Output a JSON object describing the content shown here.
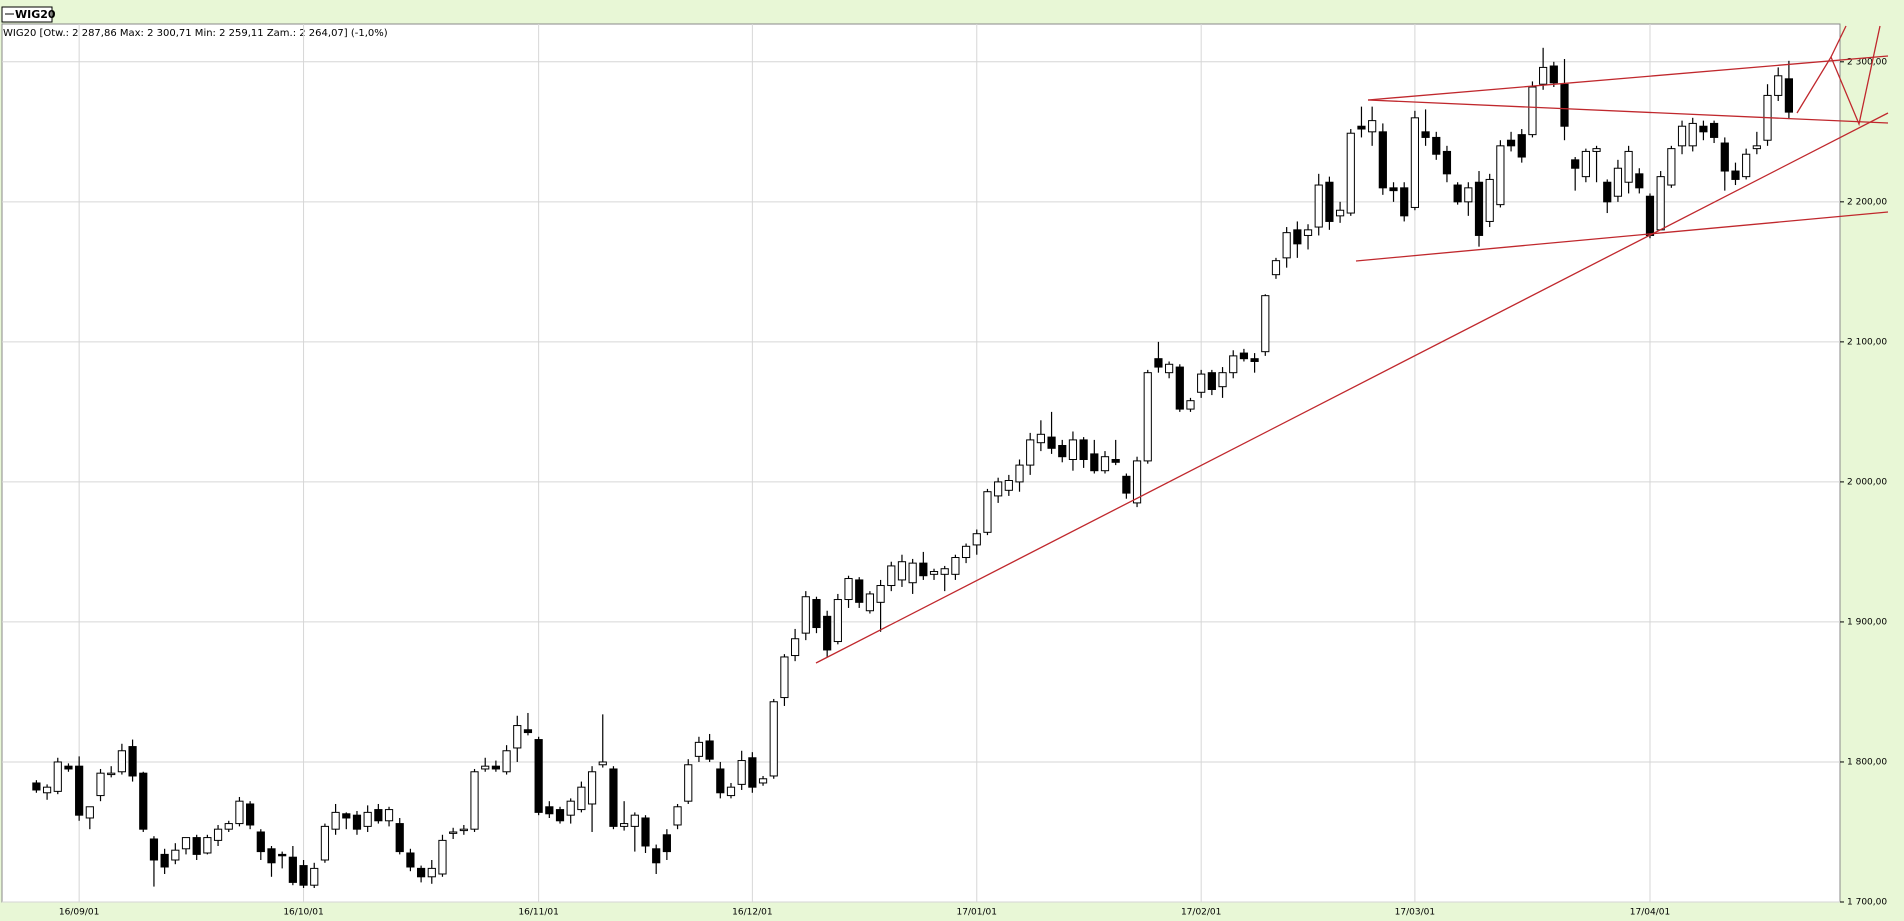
{
  "chart_data": {
    "type": "candlestick",
    "title": "WIG20",
    "subtitle": "WIG20 [Otw.: 2 287,86  Max: 2 300,71  Min: 2 259,11  Zam.: 2 264,07] (-1,0%)",
    "up_color": "#ffffff",
    "down_color": "#000000",
    "grid": true,
    "categories": [
      null,
      null,
      null,
      null,
      "16/09/01",
      null,
      null,
      null,
      null,
      null,
      null,
      null,
      null,
      null,
      null,
      null,
      null,
      null,
      null,
      null,
      null,
      null,
      null,
      null,
      null,
      "16/10/01",
      null,
      null,
      null,
      null,
      null,
      null,
      null,
      null,
      null,
      null,
      null,
      null,
      null,
      null,
      null,
      null,
      null,
      null,
      null,
      null,
      null,
      "16/11/01",
      null,
      null,
      null,
      null,
      null,
      null,
      null,
      null,
      null,
      null,
      null,
      null,
      null,
      null,
      null,
      null,
      null,
      null,
      null,
      "16/12/01",
      null,
      null,
      null,
      null,
      null,
      null,
      null,
      null,
      null,
      null,
      null,
      null,
      null,
      null,
      null,
      null,
      null,
      null,
      null,
      null,
      "17/01/01",
      null,
      null,
      null,
      null,
      null,
      null,
      null,
      null,
      null,
      null,
      null,
      null,
      null,
      null,
      null,
      null,
      null,
      null,
      null,
      null,
      "17/02/01",
      null,
      null,
      null,
      null,
      null,
      null,
      null,
      null,
      null,
      null,
      null,
      null,
      null,
      null,
      null,
      null,
      null,
      null,
      null,
      "17/03/01",
      null,
      null,
      null,
      null,
      null,
      null,
      null,
      null,
      null,
      null,
      null,
      null,
      null,
      null,
      null,
      null,
      null,
      null,
      null,
      null,
      null,
      "17/04/01",
      null,
      null,
      null,
      null,
      null,
      null,
      null,
      null,
      null,
      null,
      null,
      null,
      null
    ],
    "open": [
      1785,
      1778,
      1779,
      1797,
      1797,
      1760,
      1776,
      1791,
      1793,
      1811,
      1792,
      1745,
      1734,
      1730,
      1738,
      1746,
      1735,
      1744,
      1752,
      1756,
      1770,
      1750,
      1738,
      1734,
      1732,
      1726,
      1712,
      1730,
      1752,
      1763,
      1762,
      1754,
      1766,
      1758,
      1756,
      1735,
      1724,
      1718,
      1720,
      1749,
      1751,
      1752,
      1795,
      1797,
      1793,
      1810,
      1823,
      1816,
      1768,
      1766,
      1762,
      1766,
      1770,
      1798,
      1795,
      1754,
      1754,
      1760,
      1738,
      1748,
      1755,
      1772,
      1804,
      1815,
      1795,
      1776,
      1784,
      1803,
      1785,
      1790,
      1846,
      1876,
      1892,
      1916,
      1904,
      1886,
      1916,
      1930,
      1908,
      1914,
      1926,
      1930,
      1928,
      1942,
      1934,
      1934,
      1934,
      1946,
      1955,
      1964,
      1990,
      1994,
      2000,
      2012,
      2028,
      2032,
      2026,
      2016,
      2030,
      2020,
      2008,
      2016,
      2004,
      1985,
      2015,
      2088,
      2078,
      2082,
      2052,
      2064,
      2078,
      2068,
      2078,
      2092,
      2088,
      2093,
      2148,
      2160,
      2180,
      2176,
      2182,
      2214,
      2190,
      2192,
      2254,
      2250,
      2250,
      2210,
      2210,
      2196,
      2250,
      2246,
      2236,
      2212,
      2200,
      2214,
      2186,
      2198,
      2244,
      2248,
      2248,
      2284,
      2297,
      2284,
      2230,
      2218,
      2236,
      2214,
      2204,
      2214,
      2220,
      2204,
      2180,
      2212,
      2240,
      2240,
      2254,
      2256,
      2242,
      2222,
      2218,
      2238,
      2244,
      2276,
      2287.86
    ],
    "high": [
      1787,
      1784,
      1803,
      1799,
      1804,
      1768,
      1795,
      1797,
      1813,
      1816,
      1793,
      1747,
      1738,
      1742,
      1746,
      1748,
      1748,
      1755,
      1758,
      1775,
      1772,
      1752,
      1740,
      1736,
      1740,
      1730,
      1728,
      1756,
      1770,
      1764,
      1765,
      1769,
      1770,
      1768,
      1760,
      1738,
      1726,
      1730,
      1748,
      1753,
      1755,
      1795,
      1803,
      1801,
      1812,
      1833,
      1835,
      1818,
      1772,
      1768,
      1774,
      1786,
      1797,
      1834,
      1797,
      1772,
      1764,
      1762,
      1741,
      1752,
      1770,
      1802,
      1818,
      1820,
      1800,
      1785,
      1808,
      1807,
      1790,
      1845,
      1877,
      1895,
      1922,
      1918,
      1908,
      1920,
      1933,
      1932,
      1922,
      1930,
      1943,
      1948,
      1945,
      1950,
      1938,
      1940,
      1948,
      1956,
      1966,
      1995,
      2003,
      2005,
      2016,
      2035,
      2044,
      2050,
      2030,
      2036,
      2032,
      2030,
      2022,
      2030,
      2006,
      2018,
      2080,
      2100,
      2086,
      2084,
      2060,
      2080,
      2080,
      2082,
      2094,
      2095,
      2092,
      2134,
      2160,
      2182,
      2186,
      2184,
      2220,
      2218,
      2200,
      2252,
      2268,
      2268,
      2256,
      2214,
      2214,
      2265,
      2266,
      2250,
      2240,
      2214,
      2214,
      2222,
      2220,
      2244,
      2250,
      2252,
      2286,
      2310,
      2300,
      2302,
      2232,
      2238,
      2240,
      2216,
      2230,
      2240,
      2224,
      2206,
      2222,
      2240,
      2258,
      2260,
      2258,
      2258,
      2246,
      2228,
      2238,
      2250,
      2284,
      2296,
      2300.71
    ],
    "low": [
      1778,
      1773,
      1777,
      1793,
      1758,
      1752,
      1772,
      1789,
      1791,
      1786,
      1750,
      1711,
      1720,
      1727,
      1734,
      1730,
      1734,
      1740,
      1750,
      1754,
      1752,
      1730,
      1718,
      1724,
      1712,
      1710,
      1710,
      1728,
      1748,
      1752,
      1748,
      1750,
      1756,
      1754,
      1734,
      1722,
      1714,
      1713,
      1718,
      1745,
      1748,
      1750,
      1793,
      1793,
      1791,
      1800,
      1819,
      1762,
      1760,
      1756,
      1756,
      1764,
      1750,
      1796,
      1752,
      1751,
      1736,
      1735,
      1720,
      1730,
      1752,
      1770,
      1800,
      1800,
      1774,
      1774,
      1780,
      1778,
      1783,
      1788,
      1840,
      1872,
      1887,
      1892,
      1875,
      1884,
      1910,
      1910,
      1906,
      1893,
      1922,
      1925,
      1920,
      1930,
      1930,
      1922,
      1930,
      1942,
      1948,
      1962,
      1985,
      1990,
      1993,
      2005,
      2022,
      2020,
      2014,
      2008,
      2010,
      2006,
      2006,
      2012,
      1988,
      1982,
      2013,
      2078,
      2074,
      2050,
      2050,
      2060,
      2062,
      2060,
      2074,
      2086,
      2078,
      2090,
      2145,
      2153,
      2160,
      2166,
      2176,
      2180,
      2185,
      2190,
      2246,
      2240,
      2205,
      2200,
      2186,
      2194,
      2240,
      2230,
      2214,
      2198,
      2190,
      2168,
      2182,
      2196,
      2236,
      2228,
      2246,
      2280,
      2282,
      2244,
      2208,
      2214,
      2214,
      2192,
      2200,
      2206,
      2206,
      2174,
      2180,
      2210,
      2234,
      2236,
      2244,
      2242,
      2208,
      2212,
      2216,
      2234,
      2240,
      2272,
      2259.11
    ],
    "close": [
      1780,
      1782,
      1800,
      1795,
      1762,
      1768,
      1792,
      1792,
      1808,
      1790,
      1752,
      1730,
      1725,
      1737,
      1746,
      1734,
      1746,
      1752,
      1756,
      1772,
      1755,
      1736,
      1728,
      1733,
      1714,
      1712,
      1724,
      1754,
      1764,
      1760,
      1752,
      1764,
      1758,
      1766,
      1736,
      1725,
      1718,
      1724,
      1744,
      1750,
      1752,
      1793,
      1797,
      1795,
      1808,
      1826,
      1821,
      1764,
      1763,
      1758,
      1772,
      1782,
      1793,
      1800,
      1754,
      1756,
      1762,
      1740,
      1728,
      1736,
      1768,
      1798,
      1814,
      1802,
      1778,
      1782,
      1801,
      1782,
      1788,
      1843,
      1875,
      1888,
      1918,
      1896,
      1880,
      1916,
      1931,
      1914,
      1920,
      1926,
      1940,
      1943,
      1942,
      1933,
      1936,
      1938,
      1946,
      1954,
      1963,
      1993,
      2000,
      2001,
      2012,
      2030,
      2034,
      2024,
      2018,
      2030,
      2016,
      2008,
      2018,
      2014,
      1992,
      2015,
      2078,
      2082,
      2084,
      2052,
      2058,
      2077,
      2066,
      2078,
      2090,
      2088,
      2086,
      2133,
      2158,
      2178,
      2170,
      2180,
      2212,
      2186,
      2194,
      2249,
      2252,
      2258,
      2210,
      2208,
      2190,
      2260,
      2246,
      2234,
      2220,
      2200,
      2210,
      2176,
      2216,
      2240,
      2240,
      2232,
      2282,
      2296,
      2285,
      2254,
      2224,
      2236,
      2238,
      2200,
      2224,
      2236,
      2210,
      2176,
      2218,
      2238,
      2254,
      2256,
      2250,
      2246,
      2222,
      2216,
      2234,
      2240,
      2276,
      2290,
      2264.07
    ],
    "ylim": [
      1700,
      2327
    ],
    "yticks": [
      {
        "value": 1700,
        "label": "1 700,00"
      },
      {
        "value": 1800,
        "label": "1 800,00"
      },
      {
        "value": 1900,
        "label": "1 900,00"
      },
      {
        "value": 2000,
        "label": "2 000,00"
      },
      {
        "value": 2100,
        "label": "2 100,00"
      },
      {
        "value": 2200,
        "label": "2 200,00"
      },
      {
        "value": 2300,
        "label": "2 300,00"
      }
    ]
  }
}
